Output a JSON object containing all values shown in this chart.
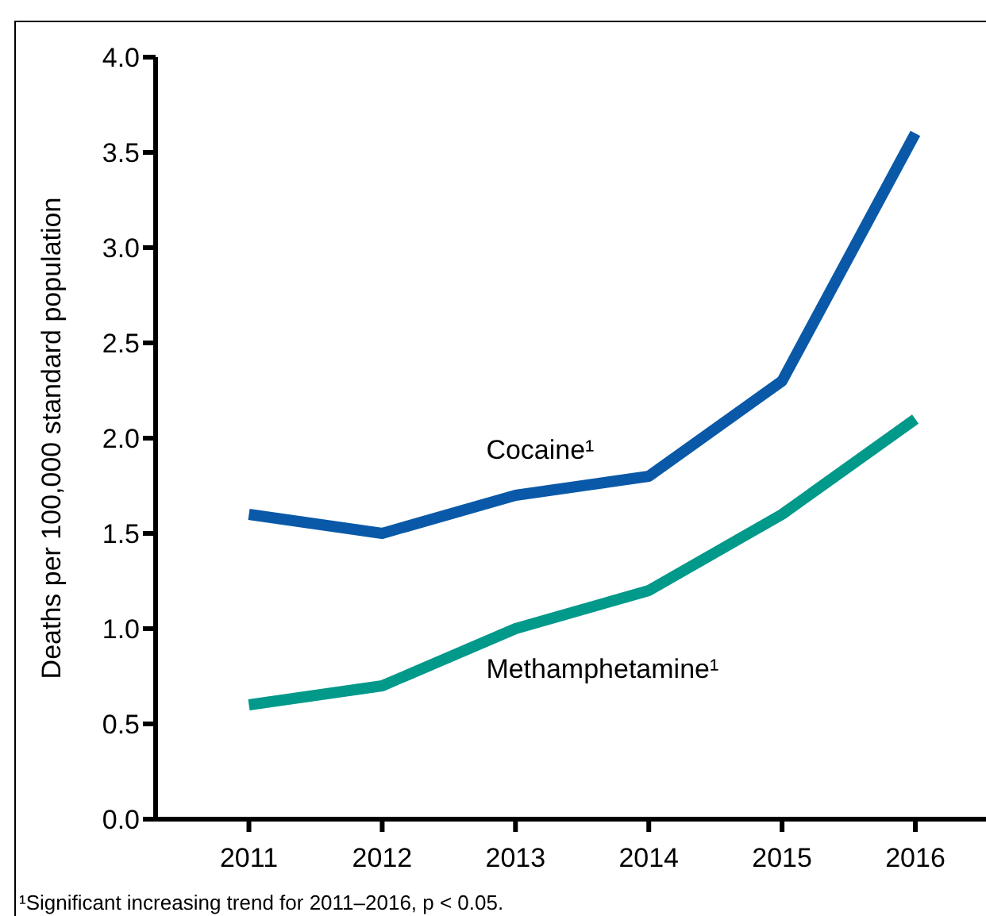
{
  "chart_data": {
    "type": "line",
    "ylabel": "Deaths per 100,000 standard population",
    "categories": [
      "2011",
      "2012",
      "2013",
      "2014",
      "2015",
      "2016"
    ],
    "series": [
      {
        "name": "Cocaine¹",
        "color": "#0a59a8",
        "values": [
          1.6,
          1.5,
          1.7,
          1.8,
          2.3,
          3.6
        ]
      },
      {
        "name": "Methamphetamine¹",
        "color": "#00998a",
        "values": [
          0.6,
          0.7,
          1.0,
          1.2,
          1.6,
          2.1
        ]
      }
    ],
    "ylim": [
      0,
      4
    ],
    "yticks": [
      {
        "value": 0,
        "label": "0.0"
      },
      {
        "value": 0.5,
        "label": "0.5"
      },
      {
        "value": 1,
        "label": "1.0"
      },
      {
        "value": 1.5,
        "label": "1.5"
      },
      {
        "value": 2,
        "label": "2.0"
      },
      {
        "value": 2.5,
        "label": "2.5"
      },
      {
        "value": 3,
        "label": "3.0"
      },
      {
        "value": 3.5,
        "label": "3.5"
      },
      {
        "value": 4,
        "label": "4.0"
      }
    ],
    "grid": false,
    "legend": false,
    "marker": "none",
    "line_style": "solid",
    "annotations": [
      "¹Significant increasing trend for 2011–2016, p < 0.05."
    ]
  }
}
